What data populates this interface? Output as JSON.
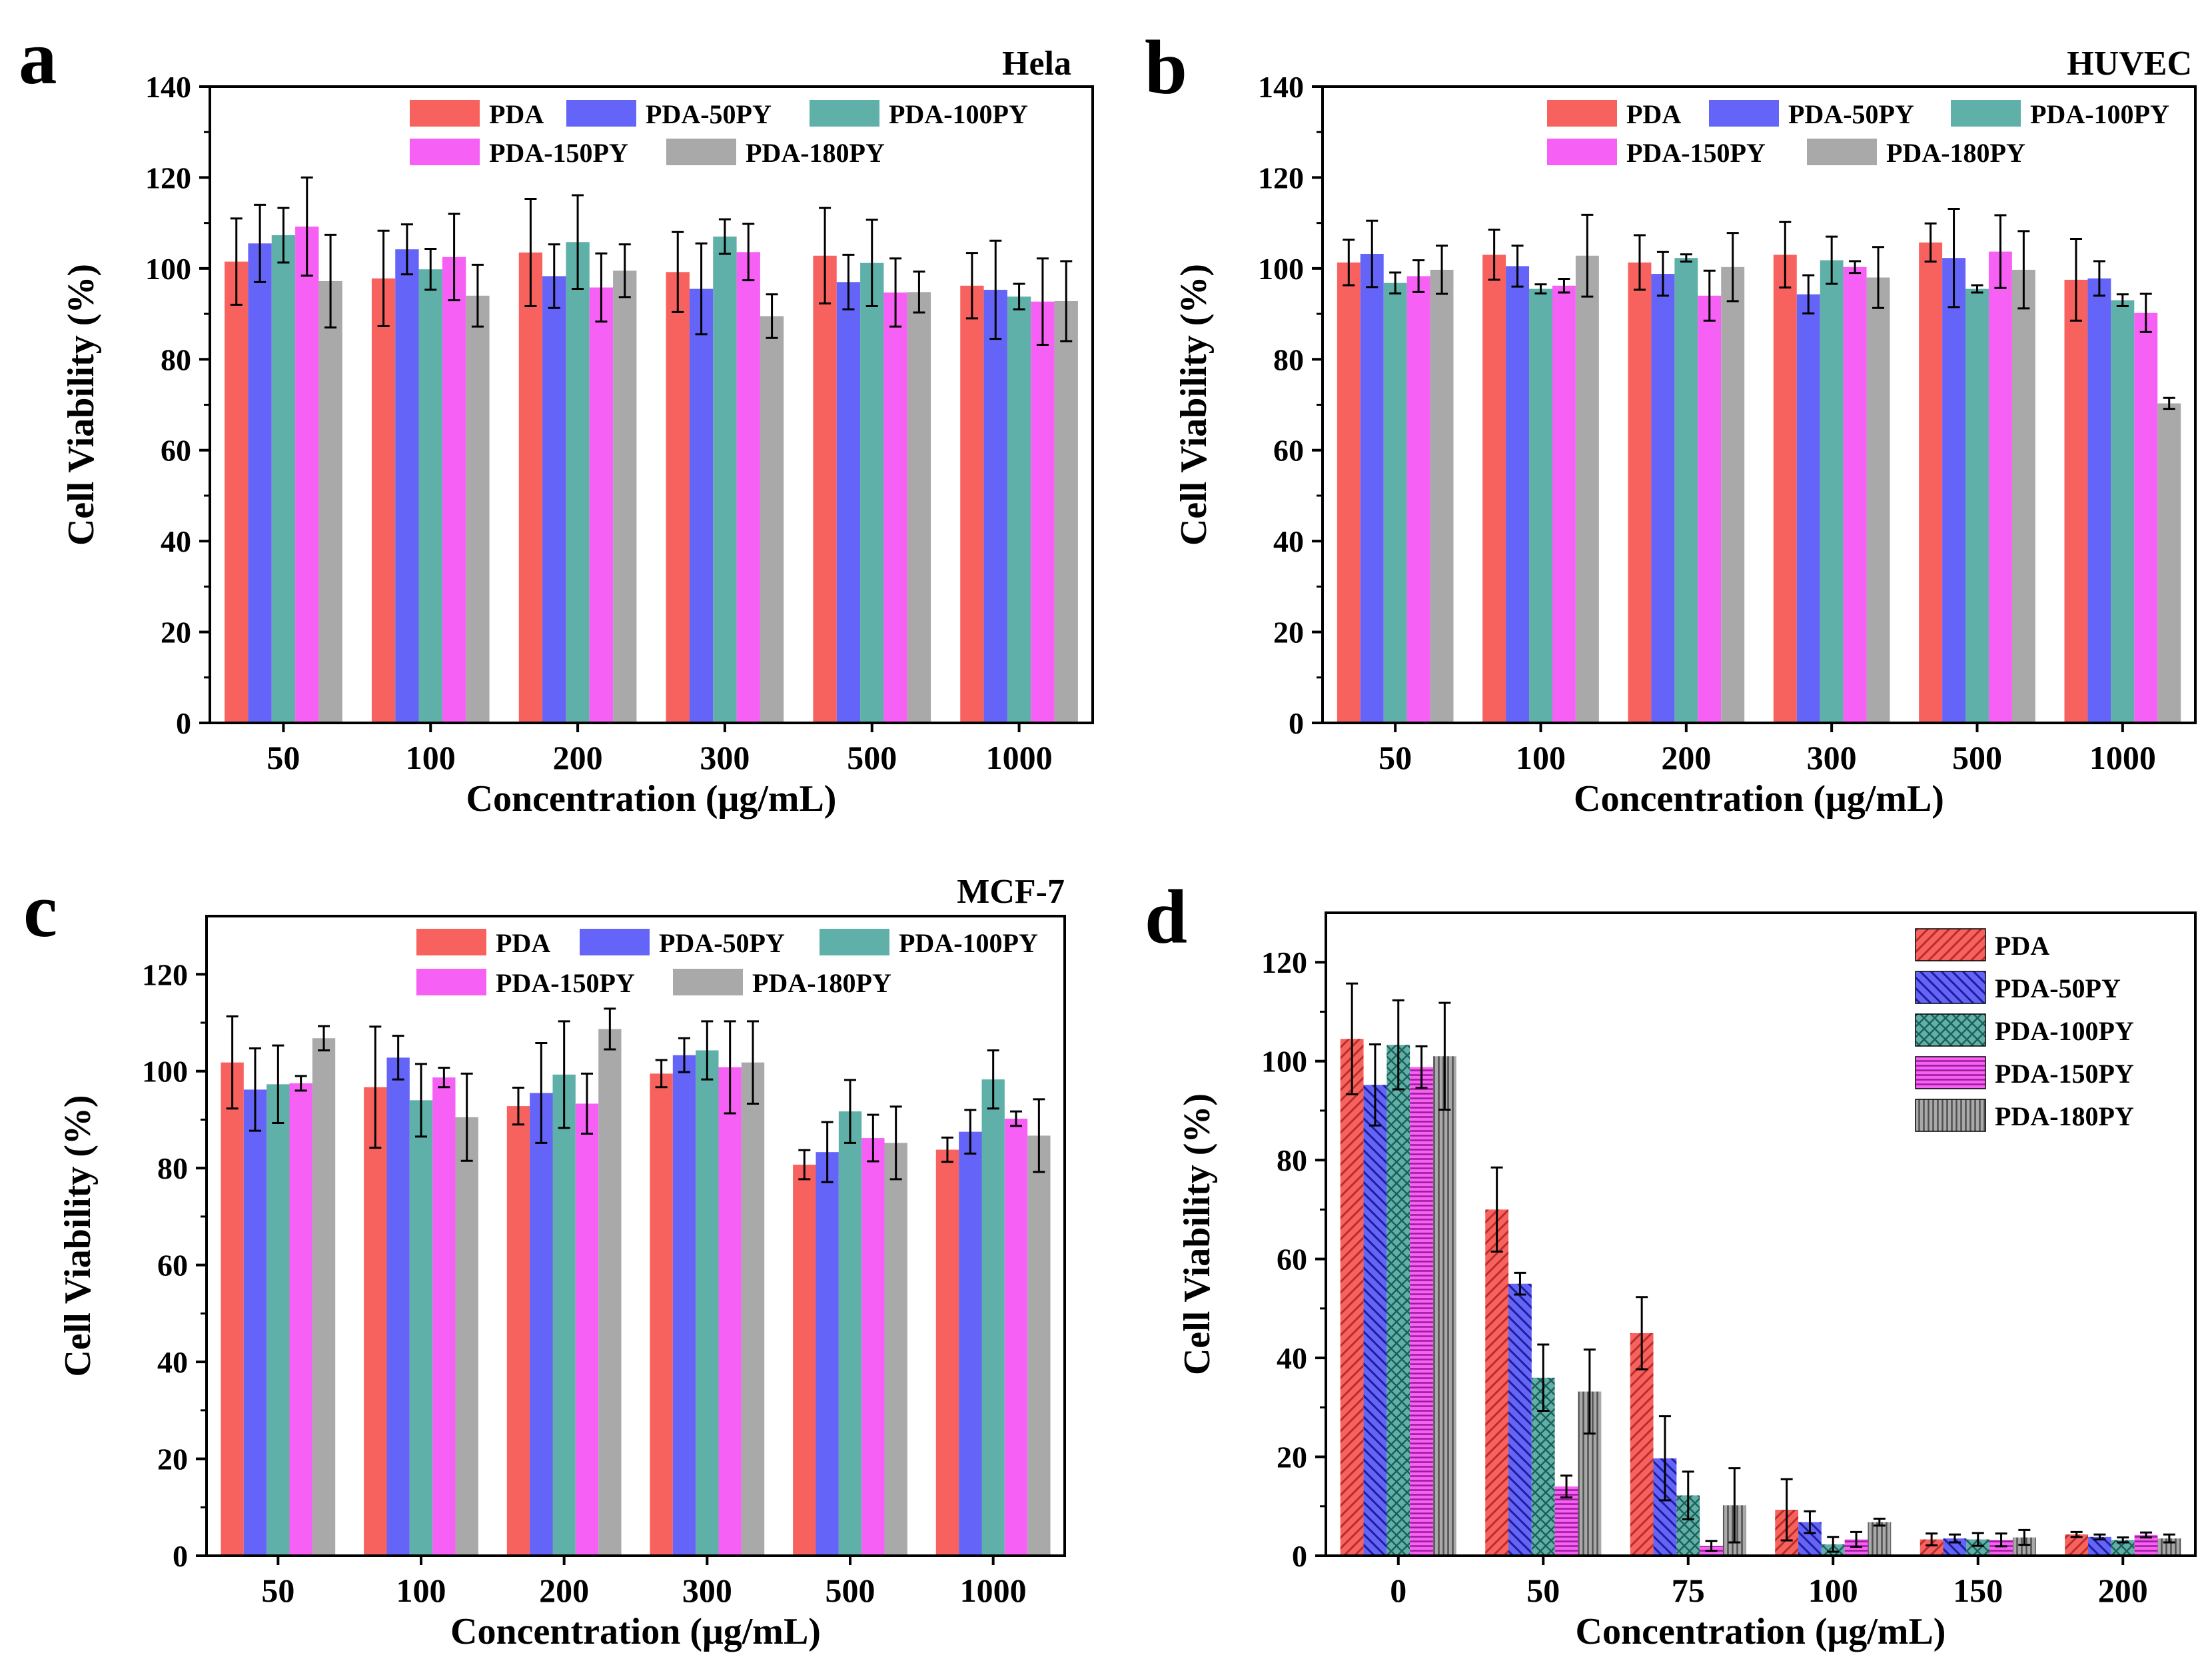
{
  "series_colors": {
    "PDA": "#F8625E",
    "PDA-50PY": "#6464F8",
    "PDA-100PY": "#5FB0A8",
    "PDA-150PY": "#F760F4",
    "PDA-180PY": "#A9A9A9"
  },
  "chart_data": [
    {
      "panel": "a",
      "type": "bar",
      "title": "Hela",
      "xlabel": "Concentration (μg/mL)",
      "ylabel": "Cell Viability (%)",
      "ylim": [
        0,
        140
      ],
      "yticks": [
        "0",
        "20",
        "40",
        "60",
        "80",
        "100",
        "120",
        "140"
      ],
      "categories": [
        "50",
        "100",
        "200",
        "300",
        "500",
        "1000"
      ],
      "legend_position": "top-right",
      "hatched": false,
      "series": [
        {
          "name": "PDA",
          "values": [
            101.5,
            97.8,
            103.5,
            99.2,
            102.8,
            96.2
          ],
          "errors": [
            9.5,
            10.5,
            11.8,
            8.8,
            10.5,
            7.2
          ]
        },
        {
          "name": "PDA-50PY",
          "values": [
            105.5,
            104.2,
            98.3,
            95.5,
            97.0,
            95.3
          ],
          "errors": [
            8.5,
            5.5,
            7.0,
            10.0,
            6.0,
            10.8
          ]
        },
        {
          "name": "PDA-100PY",
          "values": [
            107.3,
            99.8,
            105.8,
            107.0,
            101.2,
            93.8
          ],
          "errors": [
            6.0,
            4.5,
            10.3,
            3.8,
            9.5,
            2.8
          ]
        },
        {
          "name": "PDA-150PY",
          "values": [
            109.2,
            102.5,
            95.8,
            103.6,
            94.7,
            92.7
          ],
          "errors": [
            10.8,
            9.5,
            7.5,
            6.2,
            7.5,
            9.5
          ]
        },
        {
          "name": "PDA-180PY",
          "values": [
            97.2,
            94.0,
            99.5,
            89.5,
            94.8,
            92.8
          ],
          "errors": [
            10.2,
            6.8,
            5.8,
            4.8,
            4.5,
            8.8
          ]
        }
      ]
    },
    {
      "panel": "b",
      "type": "bar",
      "title": "HUVEC",
      "xlabel": "Concentration (μg/mL)",
      "ylabel": "Cell Viability (%)",
      "ylim": [
        0,
        140
      ],
      "yticks": [
        "0",
        "20",
        "40",
        "60",
        "80",
        "100",
        "120",
        "140"
      ],
      "categories": [
        "50",
        "100",
        "200",
        "300",
        "500",
        "1000"
      ],
      "legend_position": "top-right",
      "hatched": false,
      "series": [
        {
          "name": "PDA",
          "values": [
            101.3,
            103.0,
            101.3,
            103.0,
            105.7,
            97.5
          ],
          "errors": [
            5.0,
            5.5,
            6.0,
            7.2,
            4.2,
            9.0
          ]
        },
        {
          "name": "PDA-50PY",
          "values": [
            103.2,
            100.5,
            98.8,
            94.3,
            102.3,
            97.8
          ],
          "errors": [
            7.3,
            4.5,
            4.8,
            4.2,
            10.8,
            3.8
          ]
        },
        {
          "name": "PDA-100PY",
          "values": [
            96.8,
            95.5,
            102.3,
            101.8,
            95.5,
            93.0
          ],
          "errors": [
            2.3,
            1.0,
            0.8,
            5.2,
            0.8,
            1.3
          ]
        },
        {
          "name": "PDA-150PY",
          "values": [
            98.3,
            96.2,
            94.0,
            100.3,
            103.7,
            90.2
          ],
          "errors": [
            3.5,
            1.5,
            5.5,
            1.3,
            8.0,
            4.2
          ]
        },
        {
          "name": "PDA-180PY",
          "values": [
            99.7,
            102.8,
            100.3,
            98.0,
            99.7,
            70.3
          ],
          "errors": [
            5.3,
            9.0,
            7.5,
            6.7,
            8.5,
            1.2
          ]
        }
      ]
    },
    {
      "panel": "c",
      "type": "bar",
      "title": "MCF-7",
      "xlabel": "Concentration (μg/mL)",
      "ylabel": "Cell Viability (%)",
      "ylim": [
        0,
        132
      ],
      "yticks": [
        "0",
        "20",
        "40",
        "60",
        "80",
        "100",
        "120"
      ],
      "categories": [
        "50",
        "100",
        "200",
        "300",
        "500",
        "1000"
      ],
      "legend_position": "top-right",
      "hatched": false,
      "series": [
        {
          "name": "PDA",
          "values": [
            101.8,
            96.7,
            92.8,
            99.5,
            80.7,
            83.8
          ],
          "errors": [
            9.5,
            12.5,
            3.8,
            2.8,
            3.0,
            2.5
          ]
        },
        {
          "name": "PDA-50PY",
          "values": [
            96.2,
            102.8,
            95.5,
            103.3,
            83.3,
            87.5
          ],
          "errors": [
            8.5,
            4.5,
            10.3,
            3.5,
            6.2,
            4.5
          ]
        },
        {
          "name": "PDA-100PY",
          "values": [
            97.3,
            94.0,
            99.3,
            104.3,
            91.7,
            98.3
          ],
          "errors": [
            8.0,
            7.5,
            11.0,
            6.0,
            6.5,
            6.0
          ]
        },
        {
          "name": "PDA-150PY",
          "values": [
            97.5,
            98.7,
            93.3,
            100.8,
            86.2,
            90.2
          ],
          "errors": [
            1.5,
            2.0,
            6.2,
            9.5,
            4.8,
            1.5
          ]
        },
        {
          "name": "PDA-180PY",
          "values": [
            106.8,
            90.5,
            108.7,
            101.8,
            85.2,
            86.7
          ],
          "errors": [
            2.5,
            9.0,
            4.2,
            8.5,
            7.5,
            7.5
          ]
        }
      ]
    },
    {
      "panel": "d",
      "type": "bar",
      "title": "",
      "xlabel": "Concentration (μg/mL)",
      "ylabel": "Cell Viability (%)",
      "ylim": [
        0,
        130
      ],
      "yticks": [
        "0",
        "20",
        "40",
        "60",
        "80",
        "100",
        "120"
      ],
      "categories": [
        "0",
        "50",
        "75",
        "100",
        "150",
        "200"
      ],
      "legend_position": "top-right",
      "hatched": true,
      "series": [
        {
          "name": "PDA",
          "values": [
            104.5,
            70.0,
            45.0,
            9.3,
            3.3,
            4.3
          ],
          "errors": [
            11.2,
            8.5,
            7.3,
            6.2,
            1.2,
            0.5
          ]
        },
        {
          "name": "PDA-50PY",
          "values": [
            95.2,
            55.0,
            19.7,
            6.8,
            3.5,
            3.8
          ],
          "errors": [
            8.2,
            2.2,
            8.5,
            2.2,
            0.8,
            0.5
          ]
        },
        {
          "name": "PDA-100PY",
          "values": [
            103.3,
            36.0,
            12.2,
            2.3,
            3.3,
            3.2
          ],
          "errors": [
            9.0,
            6.7,
            4.8,
            1.5,
            1.3,
            0.5
          ]
        },
        {
          "name": "PDA-150PY",
          "values": [
            98.8,
            14.0,
            2.0,
            3.3,
            3.2,
            4.2
          ],
          "errors": [
            4.2,
            2.2,
            1.0,
            1.5,
            1.3,
            0.5
          ]
        },
        {
          "name": "PDA-180PY",
          "values": [
            101.0,
            33.2,
            10.2,
            6.8,
            3.7,
            3.5
          ],
          "errors": [
            10.8,
            8.5,
            7.5,
            0.7,
            1.5,
            0.8
          ]
        }
      ]
    }
  ]
}
